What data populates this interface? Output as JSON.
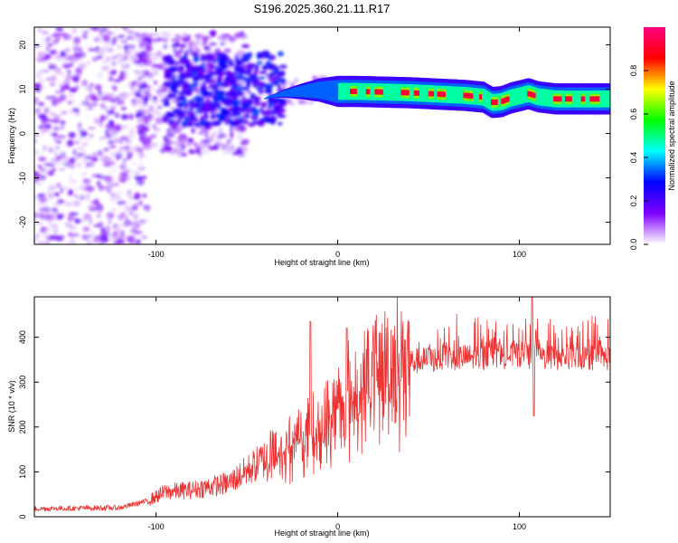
{
  "title": "S196.2025.360.21.11.R17",
  "chart_data": [
    {
      "type": "heatmap",
      "name": "spectrogram",
      "xlabel": "Height of straight line (km)",
      "ylabel": "Frequency (Hz)",
      "xlim": [
        -167,
        150
      ],
      "ylim": [
        -25,
        24
      ],
      "xticks": [
        -100,
        0,
        100
      ],
      "yticks": [
        -20,
        -10,
        0,
        10,
        20
      ],
      "colorbar": {
        "label": "Normalized spectral amplitude",
        "range": [
          0,
          1
        ],
        "ticks": [
          "0.0",
          "0.2",
          "0.4",
          "0.6",
          "0.8"
        ],
        "colors": [
          "#ffffff",
          "#8000ff",
          "#0000ff",
          "#00ffff",
          "#00ff00",
          "#ffff00",
          "#ff0000",
          "#ff0080"
        ]
      },
      "ridge": {
        "x": [
          -50,
          -40,
          -30,
          -20,
          -10,
          0,
          10,
          20,
          30,
          40,
          50,
          60,
          70,
          80,
          85,
          90,
          95,
          100,
          105,
          110,
          120,
          130,
          140,
          150
        ],
        "frequency": [
          7,
          8,
          9,
          9.5,
          9.8,
          9.5,
          9.5,
          9.4,
          9.3,
          9.2,
          9,
          8.8,
          8.6,
          8.2,
          7,
          7.2,
          8,
          8.5,
          9,
          8.3,
          7.8,
          7.8,
          7.8,
          7.8
        ]
      }
    },
    {
      "type": "line",
      "name": "snr",
      "xlabel": "Height of straight line (km)",
      "ylabel": "SNR (10 * v/v)",
      "xlim": [
        -167,
        150
      ],
      "ylim": [
        0,
        490
      ],
      "xticks": [
        -100,
        0,
        100
      ],
      "yticks": [
        0,
        100,
        200,
        300,
        400
      ],
      "color": "#ee3333",
      "baseline": {
        "x": [
          -167,
          -120,
          -105,
          -95,
          -80,
          -60,
          -40,
          -25,
          -10,
          0,
          10,
          20,
          30,
          40,
          60,
          80,
          100,
          120,
          150
        ],
        "snr": [
          18,
          20,
          35,
          55,
          60,
          75,
          130,
          160,
          190,
          240,
          270,
          310,
          335,
          345,
          355,
          355,
          360,
          355,
          355
        ]
      },
      "spikes": [
        {
          "x": -15,
          "snr": 435
        },
        {
          "x": 5,
          "snr": 420
        },
        {
          "x": 107,
          "snr": 490
        },
        {
          "x": 108,
          "snr": 225
        }
      ]
    }
  ]
}
